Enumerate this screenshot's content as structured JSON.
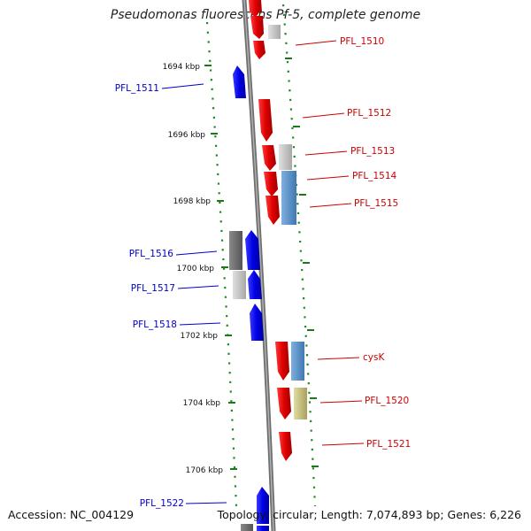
{
  "title": "Pseudomonas fluorescens Pf-5, complete genome",
  "accession": "Accession: NC_004129",
  "stats": "Topology: circular; Length: 7,074,893 bp; Genes: 6,226",
  "colors": {
    "forward": "#ee0000",
    "reverse": "#0000ee",
    "backbone": "#8a8a8a",
    "ruler_ticks": "#1a7a1a",
    "label_forward": "#cc0000",
    "label_reverse": "#0000cc"
  },
  "ruler_labels": [
    "1694 kbp",
    "1696 kbp",
    "1698 kbp",
    "1700 kbp",
    "1702 kbp",
    "1704 kbp",
    "1706 kbp"
  ],
  "forward_gene_labels": [
    "PFL_1510",
    "PFL_1512",
    "PFL_1513",
    "PFL_1514",
    "PFL_1515",
    "cysK",
    "PFL_1520",
    "PFL_1521"
  ],
  "reverse_gene_labels": [
    "PFL_1511",
    "PFL_1516",
    "PFL_1517",
    "PFL_1518",
    "PFL_1522"
  ]
}
